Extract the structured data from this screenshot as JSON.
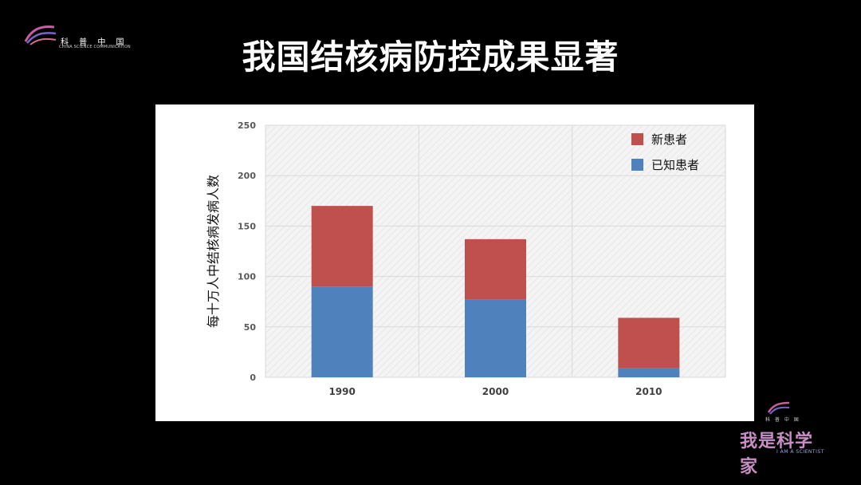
{
  "branding": {
    "top_left_cn": "科 普 中 国",
    "top_left_en": "CHINA SCIENCE COMMUNICATION",
    "bottom_right_small": "科 普 中 国",
    "bottom_right_cn": "我是科学家",
    "bottom_right_en": "I AM A SCIENTIST"
  },
  "slide": {
    "title": "我国结核病防控成果显著"
  },
  "chart_data": {
    "type": "bar",
    "stacked": true,
    "categories": [
      "1990",
      "2000",
      "2010"
    ],
    "series": [
      {
        "name": "已知患者",
        "color": "#4f81bd",
        "values": [
          90,
          77,
          9
        ]
      },
      {
        "name": "新患者",
        "color": "#c0504d",
        "values": [
          80,
          60,
          50
        ]
      }
    ],
    "legend_order": [
      "新患者",
      "已知患者"
    ],
    "ylabel": "每十万人中结核病发病人数",
    "ylim": [
      0,
      250
    ],
    "yticks": [
      0,
      50,
      100,
      150,
      200,
      250
    ],
    "grid": true,
    "legend_position": "top-right"
  }
}
